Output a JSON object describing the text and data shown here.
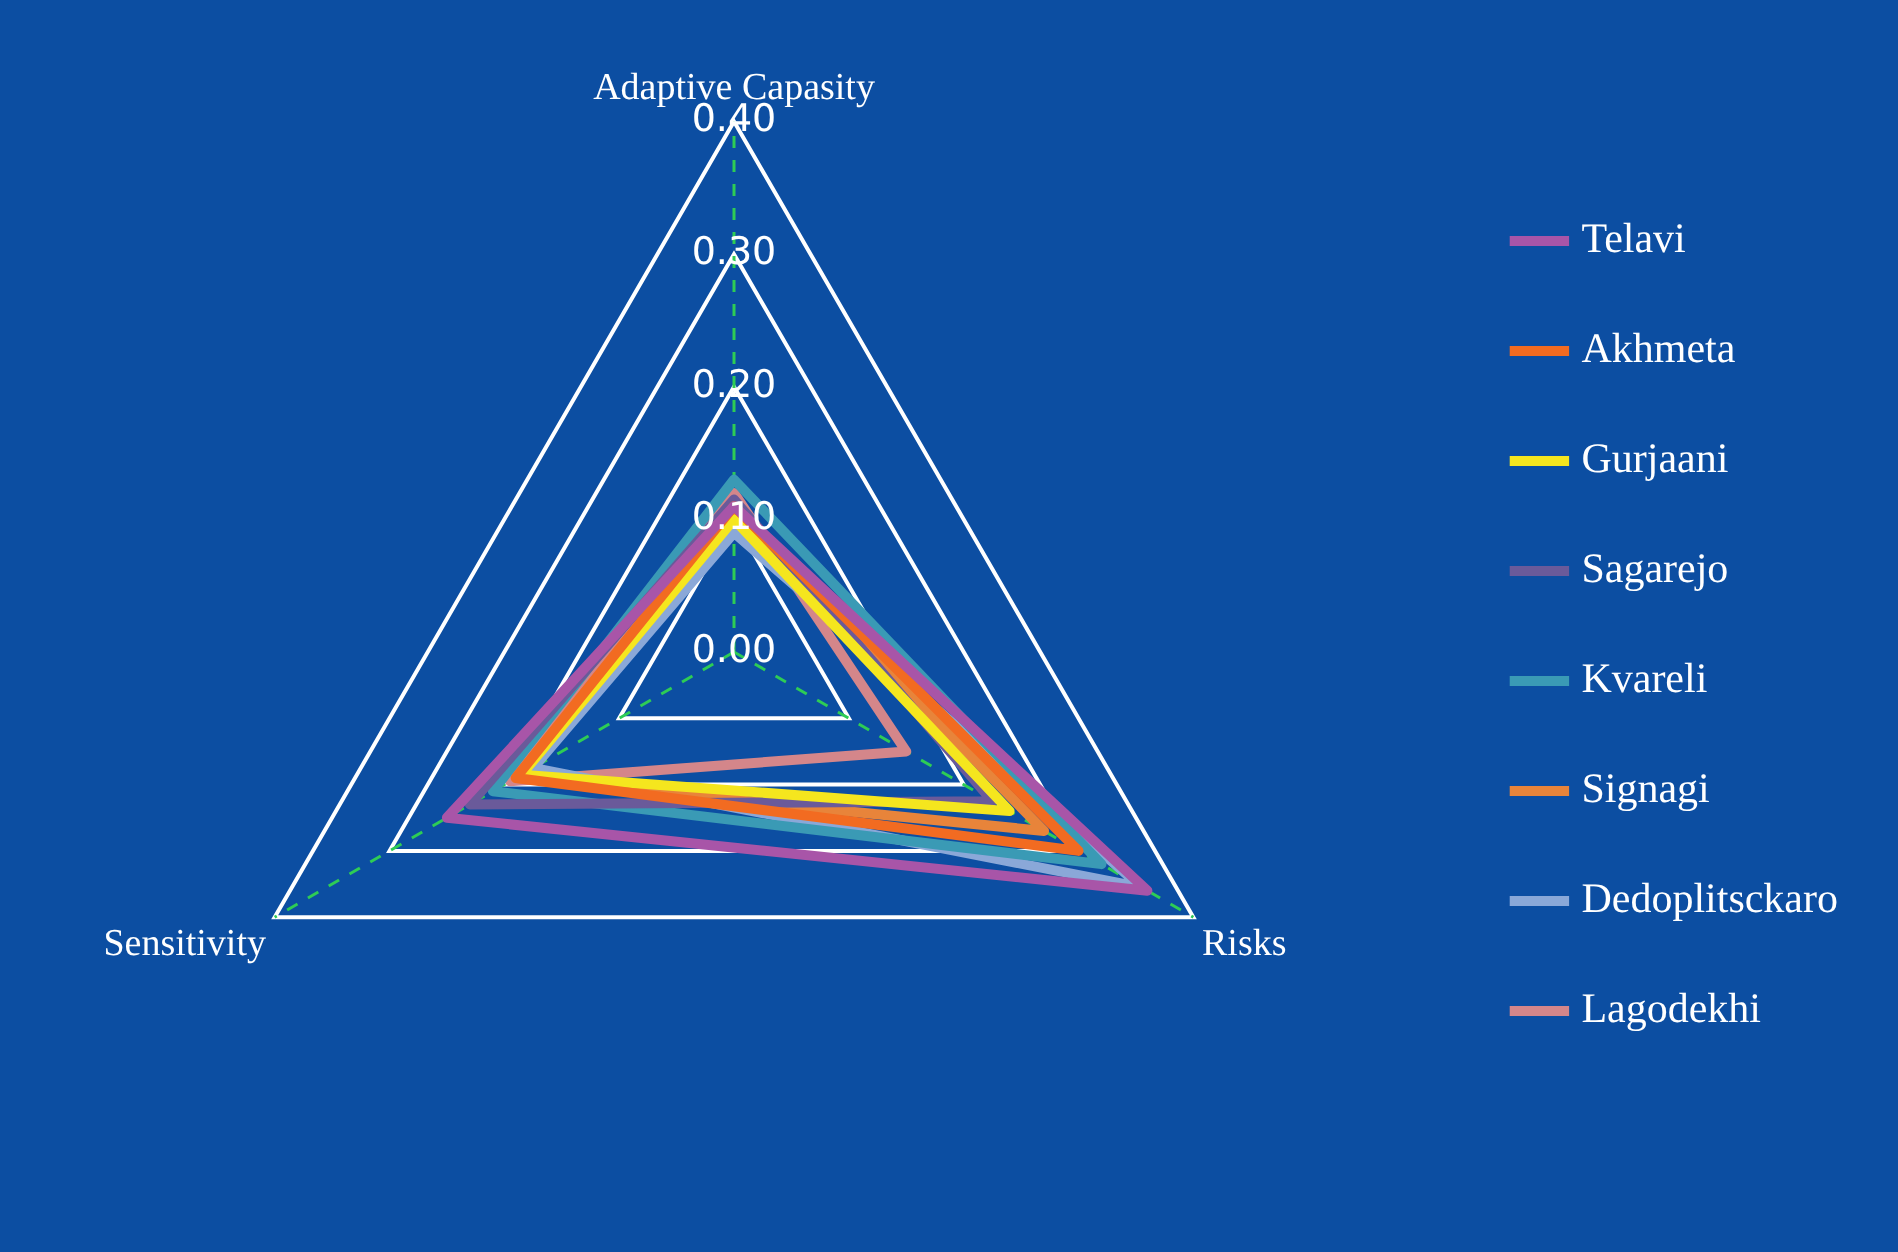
{
  "chart_data": {
    "type": "radar",
    "categories": [
      "Adaptive Capasity",
      "Risks",
      "Sensitivity"
    ],
    "series": [
      {
        "name": "Telavi",
        "color": "#a855a8",
        "values": [
          0.11,
          0.36,
          0.25
        ]
      },
      {
        "name": "Akhmeta",
        "color": "#f26b21",
        "values": [
          0.11,
          0.3,
          0.19
        ]
      },
      {
        "name": "Gurjaani",
        "color": "#f5e61e",
        "values": [
          0.1,
          0.24,
          0.185
        ]
      },
      {
        "name": "Sagarejo",
        "color": "#6a5a9a",
        "values": [
          0.115,
          0.225,
          0.23
        ]
      },
      {
        "name": "Kvareli",
        "color": "#3a9ab5",
        "values": [
          0.13,
          0.32,
          0.21
        ]
      },
      {
        "name": "Signagi",
        "color": "#e8843a",
        "values": [
          0.105,
          0.27,
          0.19
        ]
      },
      {
        "name": "Dedoplitsckaro",
        "color": "#8aa8d8",
        "values": [
          0.09,
          0.355,
          0.175
        ]
      },
      {
        "name": "Lagodekhi",
        "color": "#d4868a",
        "values": [
          0.12,
          0.15,
          0.195
        ]
      }
    ],
    "ylim": [
      0,
      0.4
    ],
    "yticks": [
      {
        "value": 0,
        "label": "0.00"
      },
      {
        "value": 0.1,
        "label": "0.10"
      },
      {
        "value": 0.2,
        "label": "0.20"
      },
      {
        "value": 0.3,
        "label": "0.30"
      },
      {
        "value": 0.4,
        "label": "0.40"
      }
    ],
    "grid": true,
    "legend": "right",
    "marker": "none"
  }
}
